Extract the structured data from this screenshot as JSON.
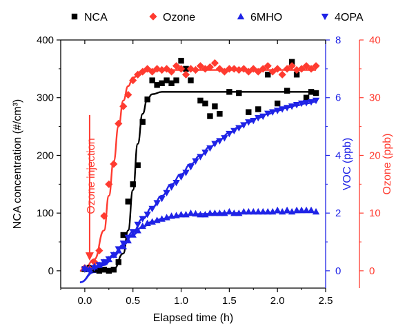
{
  "colors": {
    "black": "#000000",
    "red": "#ff3b30",
    "blue": "#1f23e6",
    "axis": "#000000"
  },
  "chart_data": {
    "type": "scatter",
    "xlabel": "Elapsed time (h)",
    "xlim": [
      -0.25,
      2.5
    ],
    "xticks": [
      0.0,
      0.5,
      1.0,
      1.5,
      2.0,
      2.5
    ],
    "xtick_labels": [
      "0.0",
      "0.5",
      "1.0",
      "1.5",
      "2.0",
      "2.5"
    ],
    "axes": {
      "left": {
        "label": "NCA concentration (#/cm³)",
        "ylim": [
          -30,
          400
        ],
        "ticks": [
          0,
          100,
          200,
          300,
          400
        ],
        "tick_labels": [
          "0",
          "100",
          "200",
          "300",
          "400"
        ],
        "color": "#000000"
      },
      "right1": {
        "label": "VOC (ppb)",
        "ylim": [
          -0.6,
          8
        ],
        "ticks": [
          0,
          2,
          4,
          6,
          8
        ],
        "tick_labels": [
          "0",
          "2",
          "4",
          "6",
          "8"
        ],
        "color": "#1f23e6"
      },
      "right2": {
        "label": "Ozone (ppb)",
        "ylim": [
          -3,
          40
        ],
        "ticks": [
          0,
          10,
          20,
          30,
          40
        ],
        "tick_labels": [
          "0",
          "10",
          "20",
          "30",
          "40"
        ],
        "color": "#ff3b30"
      }
    },
    "legend": {
      "placement": "top",
      "entries": [
        "NCA",
        "Ozone",
        "6MHO",
        "4OPA"
      ]
    },
    "annotations": [
      {
        "text": "Ozone injection",
        "x": 0.05,
        "y_start": 270,
        "y_end": 20,
        "color": "#ff3b30"
      }
    ],
    "series": [
      {
        "name": "NCA",
        "axis": "left",
        "marker": "square",
        "color": "#000000",
        "points": [
          [
            0.0,
            3
          ],
          [
            0.05,
            5
          ],
          [
            0.1,
            2
          ],
          [
            0.15,
            0
          ],
          [
            0.2,
            2
          ],
          [
            0.25,
            0
          ],
          [
            0.3,
            2
          ],
          [
            0.35,
            15
          ],
          [
            0.4,
            62
          ],
          [
            0.45,
            120
          ],
          [
            0.5,
            150
          ],
          [
            0.55,
            183
          ],
          [
            0.6,
            258
          ],
          [
            0.65,
            297
          ],
          [
            0.7,
            330
          ],
          [
            0.75,
            322
          ],
          [
            0.8,
            325
          ],
          [
            0.85,
            330
          ],
          [
            0.9,
            325
          ],
          [
            0.95,
            330
          ],
          [
            1.0,
            364
          ],
          [
            1.05,
            350
          ],
          [
            1.1,
            330
          ],
          [
            1.2,
            295
          ],
          [
            1.25,
            290
          ],
          [
            1.3,
            268
          ],
          [
            1.35,
            285
          ],
          [
            1.4,
            272
          ],
          [
            1.5,
            310
          ],
          [
            1.6,
            308
          ],
          [
            1.7,
            275
          ],
          [
            1.8,
            280
          ],
          [
            1.9,
            340
          ],
          [
            2.0,
            290
          ],
          [
            2.1,
            312
          ],
          [
            2.15,
            362
          ],
          [
            2.2,
            340
          ],
          [
            2.3,
            300
          ],
          [
            2.35,
            310
          ],
          [
            2.4,
            308
          ]
        ],
        "fit": [
          [
            -0.05,
            0
          ],
          [
            0.3,
            3
          ],
          [
            0.4,
            30
          ],
          [
            0.45,
            70
          ],
          [
            0.5,
            140
          ],
          [
            0.55,
            220
          ],
          [
            0.6,
            272
          ],
          [
            0.65,
            298
          ],
          [
            0.7,
            306
          ],
          [
            0.8,
            310
          ],
          [
            1.0,
            310
          ],
          [
            1.5,
            310
          ],
          [
            2.0,
            310
          ],
          [
            2.4,
            310
          ]
        ]
      },
      {
        "name": "Ozone",
        "axis": "right2",
        "marker": "diamond",
        "color": "#ff3b30",
        "points": [
          [
            0.0,
            0.5
          ],
          [
            0.05,
            0.3
          ],
          [
            0.1,
            1.5
          ],
          [
            0.15,
            3.5
          ],
          [
            0.2,
            9.5
          ],
          [
            0.25,
            15
          ],
          [
            0.3,
            18.5
          ],
          [
            0.35,
            25.5
          ],
          [
            0.4,
            28.5
          ],
          [
            0.45,
            30.5
          ],
          [
            0.5,
            33
          ],
          [
            0.55,
            34
          ],
          [
            0.6,
            34.5
          ],
          [
            0.65,
            35
          ],
          [
            0.7,
            34.5
          ],
          [
            0.75,
            35
          ],
          [
            0.8,
            34.8
          ],
          [
            0.85,
            35
          ],
          [
            0.9,
            34.5
          ],
          [
            0.95,
            35.5
          ],
          [
            1.0,
            35
          ],
          [
            1.05,
            34
          ],
          [
            1.1,
            35
          ],
          [
            1.15,
            34.8
          ],
          [
            1.2,
            35.5
          ],
          [
            1.25,
            35
          ],
          [
            1.3,
            35.3
          ],
          [
            1.35,
            36
          ],
          [
            1.4,
            35
          ],
          [
            1.45,
            34.5
          ],
          [
            1.5,
            35
          ],
          [
            1.55,
            35
          ],
          [
            1.6,
            34.8
          ],
          [
            1.65,
            35
          ],
          [
            1.7,
            34.5
          ],
          [
            1.75,
            35
          ],
          [
            1.8,
            34.5
          ],
          [
            1.85,
            35
          ],
          [
            1.9,
            35.5
          ],
          [
            1.95,
            34.5
          ],
          [
            2.0,
            35
          ],
          [
            2.05,
            34
          ],
          [
            2.1,
            35
          ],
          [
            2.15,
            35.5
          ],
          [
            2.2,
            34.8
          ],
          [
            2.25,
            35
          ],
          [
            2.3,
            35.5
          ],
          [
            2.35,
            35
          ],
          [
            2.4,
            35.5
          ]
        ],
        "fit": [
          [
            -0.05,
            0
          ],
          [
            0.0,
            0.5
          ],
          [
            0.1,
            2
          ],
          [
            0.2,
            7
          ],
          [
            0.25,
            13
          ],
          [
            0.3,
            19
          ],
          [
            0.35,
            25
          ],
          [
            0.4,
            29.5
          ],
          [
            0.45,
            32
          ],
          [
            0.5,
            33.5
          ],
          [
            0.6,
            34.5
          ],
          [
            0.7,
            34.7
          ],
          [
            1.0,
            34.8
          ],
          [
            2.4,
            34.8
          ]
        ]
      },
      {
        "name": "6MHO",
        "axis": "right1",
        "marker": "triangle-up",
        "color": "#1f23e6",
        "points": [
          [
            0.0,
            0.1
          ],
          [
            0.05,
            0.05
          ],
          [
            0.1,
            0.15
          ],
          [
            0.15,
            0.2
          ],
          [
            0.2,
            0.3
          ],
          [
            0.25,
            0.4
          ],
          [
            0.3,
            0.55
          ],
          [
            0.35,
            0.7
          ],
          [
            0.4,
            0.85
          ],
          [
            0.45,
            1.05
          ],
          [
            0.5,
            1.25
          ],
          [
            0.55,
            1.4
          ],
          [
            0.6,
            1.55
          ],
          [
            0.65,
            1.65
          ],
          [
            0.7,
            1.7
          ],
          [
            0.75,
            1.75
          ],
          [
            0.8,
            1.8
          ],
          [
            0.85,
            1.85
          ],
          [
            0.9,
            1.9
          ],
          [
            0.95,
            1.92
          ],
          [
            1.0,
            1.95
          ],
          [
            1.05,
            1.95
          ],
          [
            1.1,
            2.0
          ],
          [
            1.15,
            1.98
          ],
          [
            1.2,
            1.95
          ],
          [
            1.25,
            1.95
          ],
          [
            1.3,
            2.0
          ],
          [
            1.35,
            2.0
          ],
          [
            1.4,
            2.0
          ],
          [
            1.45,
            2.0
          ],
          [
            1.5,
            2.05
          ],
          [
            1.55,
            2.0
          ],
          [
            1.6,
            2.0
          ],
          [
            1.65,
            2.05
          ],
          [
            1.7,
            2.05
          ],
          [
            1.75,
            2.05
          ],
          [
            1.8,
            2.05
          ],
          [
            1.85,
            2.05
          ],
          [
            1.9,
            2.05
          ],
          [
            1.95,
            2.05
          ],
          [
            2.0,
            2.1
          ],
          [
            2.05,
            2.05
          ],
          [
            2.1,
            2.1
          ],
          [
            2.15,
            2.05
          ],
          [
            2.2,
            2.1
          ],
          [
            2.25,
            2.1
          ],
          [
            2.3,
            2.1
          ],
          [
            2.35,
            2.1
          ],
          [
            2.4,
            2.05
          ]
        ],
        "fit": [
          [
            -0.05,
            -0.4
          ],
          [
            0.1,
            0.0
          ],
          [
            0.2,
            0.25
          ],
          [
            0.3,
            0.55
          ],
          [
            0.4,
            0.9
          ],
          [
            0.5,
            1.25
          ],
          [
            0.6,
            1.52
          ],
          [
            0.7,
            1.7
          ],
          [
            0.8,
            1.8
          ],
          [
            0.9,
            1.87
          ],
          [
            1.0,
            1.92
          ],
          [
            1.2,
            1.97
          ],
          [
            1.5,
            2.0
          ],
          [
            2.0,
            2.02
          ],
          [
            2.4,
            2.03
          ]
        ]
      },
      {
        "name": "4OPA",
        "axis": "right1",
        "marker": "triangle-down",
        "color": "#1f23e6",
        "points": [
          [
            0.0,
            0.05
          ],
          [
            0.05,
            0.0
          ],
          [
            0.1,
            0.1
          ],
          [
            0.15,
            0.2
          ],
          [
            0.2,
            0.3
          ],
          [
            0.25,
            0.4
          ],
          [
            0.3,
            0.55
          ],
          [
            0.35,
            0.75
          ],
          [
            0.4,
            0.95
          ],
          [
            0.45,
            1.15
          ],
          [
            0.5,
            1.35
          ],
          [
            0.55,
            1.6
          ],
          [
            0.6,
            1.8
          ],
          [
            0.65,
            1.95
          ],
          [
            0.7,
            2.15
          ],
          [
            0.75,
            2.35
          ],
          [
            0.8,
            2.5
          ],
          [
            0.85,
            2.7
          ],
          [
            0.9,
            2.9
          ],
          [
            0.95,
            3.05
          ],
          [
            1.0,
            3.25
          ],
          [
            1.05,
            3.4
          ],
          [
            1.1,
            3.6
          ],
          [
            1.15,
            3.8
          ],
          [
            1.2,
            3.95
          ],
          [
            1.25,
            4.1
          ],
          [
            1.3,
            4.25
          ],
          [
            1.35,
            4.4
          ],
          [
            1.4,
            4.5
          ],
          [
            1.45,
            4.6
          ],
          [
            1.5,
            4.75
          ],
          [
            1.55,
            4.85
          ],
          [
            1.6,
            4.95
          ],
          [
            1.65,
            5.05
          ],
          [
            1.7,
            5.15
          ],
          [
            1.75,
            5.2
          ],
          [
            1.8,
            5.3
          ],
          [
            1.85,
            5.35
          ],
          [
            1.9,
            5.45
          ],
          [
            1.95,
            5.5
          ],
          [
            2.0,
            5.55
          ],
          [
            2.05,
            5.6
          ],
          [
            2.1,
            5.65
          ],
          [
            2.15,
            5.7
          ],
          [
            2.2,
            5.75
          ],
          [
            2.25,
            5.8
          ],
          [
            2.3,
            5.82
          ],
          [
            2.35,
            5.85
          ],
          [
            2.4,
            5.9
          ]
        ],
        "fit": [
          [
            -0.05,
            -0.4
          ],
          [
            0.1,
            -0.05
          ],
          [
            0.2,
            0.2
          ],
          [
            0.3,
            0.5
          ],
          [
            0.4,
            0.9
          ],
          [
            0.5,
            1.35
          ],
          [
            0.6,
            1.8
          ],
          [
            0.7,
            2.2
          ],
          [
            0.8,
            2.6
          ],
          [
            0.9,
            3.0
          ],
          [
            1.0,
            3.35
          ],
          [
            1.1,
            3.7
          ],
          [
            1.2,
            4.0
          ],
          [
            1.3,
            4.3
          ],
          [
            1.4,
            4.55
          ],
          [
            1.5,
            4.78
          ],
          [
            1.6,
            4.98
          ],
          [
            1.7,
            5.15
          ],
          [
            1.8,
            5.3
          ],
          [
            1.9,
            5.43
          ],
          [
            2.0,
            5.55
          ],
          [
            2.1,
            5.65
          ],
          [
            2.2,
            5.73
          ],
          [
            2.3,
            5.8
          ],
          [
            2.4,
            5.86
          ]
        ]
      }
    ]
  }
}
